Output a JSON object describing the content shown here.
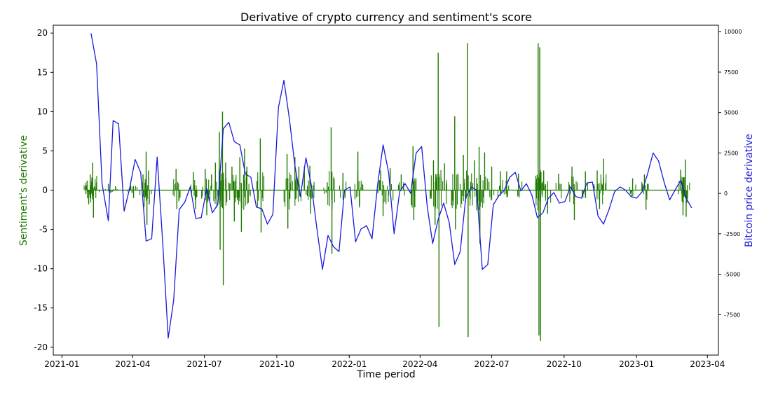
{
  "chart_data": {
    "type": "line",
    "title": "Derivative of crypto currency and sentiment's score",
    "xlabel": "Time period",
    "ylabel_left": "Sentiment's derivative",
    "ylabel_right": "Bitcoin price derivative",
    "ylim_left": [
      -21,
      21
    ],
    "ylim_right": [
      -10000,
      10400
    ],
    "y_ticks_left": [
      -20,
      -15,
      -10,
      -5,
      0,
      5,
      10,
      15,
      20
    ],
    "y_ticks_right": [
      -7500,
      -5000,
      -2500,
      0,
      2500,
      5000,
      7500,
      10000
    ],
    "x_ticks": [
      "2021-01",
      "2021-04",
      "2021-07",
      "2021-10",
      "2022-01",
      "2022-04",
      "2022-07",
      "2022-10",
      "2023-01",
      "2023-04"
    ],
    "xlim": [
      "2020-12-21",
      "2023-04-15"
    ],
    "grid": false,
    "colors": {
      "sentiment": "#1f7a00",
      "bitcoin": "#1a1adb"
    },
    "series": [
      {
        "name": "Sentiment's derivative",
        "axis": "left",
        "style": "vertical spikes around 0",
        "points": [
          [
            "2021-02-02",
            1.2
          ],
          [
            "2021-02-04",
            -1.8
          ],
          [
            "2021-02-06",
            2.0
          ],
          [
            "2021-02-09",
            3.5
          ],
          [
            "2021-02-10",
            -3.5
          ],
          [
            "2021-02-14",
            1.0
          ],
          [
            "2021-03-01",
            0.8
          ],
          [
            "2021-03-10",
            0.5
          ],
          [
            "2021-03-29",
            0.9
          ],
          [
            "2021-04-02",
            -1.0
          ],
          [
            "2021-04-14",
            2.0
          ],
          [
            "2021-04-18",
            4.9
          ],
          [
            "2021-04-19",
            -4.4
          ],
          [
            "2021-04-21",
            2.5
          ],
          [
            "2021-05-26",
            2.7
          ],
          [
            "2021-05-27",
            -2.4
          ],
          [
            "2021-06-17",
            2.3
          ],
          [
            "2021-06-20",
            -2.4
          ],
          [
            "2021-07-02",
            2.7
          ],
          [
            "2021-07-04",
            -3.2
          ],
          [
            "2021-07-10",
            2.0
          ],
          [
            "2021-07-15",
            3.5
          ],
          [
            "2021-07-20",
            7.4
          ],
          [
            "2021-07-21",
            -7.6
          ],
          [
            "2021-07-24",
            10.0
          ],
          [
            "2021-07-25",
            -12.1
          ],
          [
            "2021-07-28",
            3.5
          ],
          [
            "2021-08-05",
            3.0
          ],
          [
            "2021-08-08",
            -4.0
          ],
          [
            "2021-08-15",
            4.2
          ],
          [
            "2021-08-17",
            -5.3
          ],
          [
            "2021-08-21",
            5.3
          ],
          [
            "2021-08-24",
            3.0
          ],
          [
            "2021-09-10",
            6.6
          ],
          [
            "2021-09-11",
            -5.4
          ],
          [
            "2021-10-14",
            4.6
          ],
          [
            "2021-10-15",
            -4.9
          ],
          [
            "2021-10-24",
            4.2
          ],
          [
            "2021-10-29",
            3.0
          ],
          [
            "2021-11-05",
            3.0
          ],
          [
            "2021-11-12",
            3.1
          ],
          [
            "2021-11-13",
            -3.0
          ],
          [
            "2021-12-04",
            1.0
          ],
          [
            "2021-12-09",
            8.0
          ],
          [
            "2021-12-10",
            -8.1
          ],
          [
            "2021-12-24",
            2.2
          ],
          [
            "2022-01-12",
            4.9
          ],
          [
            "2022-01-14",
            -2.2
          ],
          [
            "2022-02-10",
            2.5
          ],
          [
            "2022-02-13",
            -3.3
          ],
          [
            "2022-02-22",
            2.8
          ],
          [
            "2022-03-08",
            2.0
          ],
          [
            "2022-03-23",
            5.6
          ],
          [
            "2022-03-24",
            -3.8
          ],
          [
            "2022-04-18",
            3.8
          ],
          [
            "2022-04-20",
            -4.4
          ],
          [
            "2022-04-24",
            17.5
          ],
          [
            "2022-04-25",
            -17.4
          ],
          [
            "2022-05-02",
            3.4
          ],
          [
            "2022-05-15",
            9.4
          ],
          [
            "2022-05-16",
            -5.0
          ],
          [
            "2022-05-26",
            4.5
          ],
          [
            "2022-05-31",
            18.7
          ],
          [
            "2022-06-01",
            -18.7
          ],
          [
            "2022-06-09",
            3.8
          ],
          [
            "2022-06-15",
            5.5
          ],
          [
            "2022-06-16",
            -6.8
          ],
          [
            "2022-06-22",
            4.8
          ],
          [
            "2022-07-01",
            3.0
          ],
          [
            "2022-07-12",
            2.4
          ],
          [
            "2022-07-20",
            2.4
          ],
          [
            "2022-08-04",
            2.1
          ],
          [
            "2022-08-29",
            18.7
          ],
          [
            "2022-08-30",
            -18.5
          ],
          [
            "2022-08-31",
            18.2
          ],
          [
            "2022-09-01",
            -19.2
          ],
          [
            "2022-09-05",
            2.5
          ],
          [
            "2022-09-10",
            -3.0
          ],
          [
            "2022-09-24",
            2.1
          ],
          [
            "2022-10-11",
            3.0
          ],
          [
            "2022-10-14",
            -3.8
          ],
          [
            "2022-10-28",
            2.4
          ],
          [
            "2022-11-12",
            2.5
          ],
          [
            "2022-11-15",
            -2.4
          ],
          [
            "2022-11-20",
            4.0
          ],
          [
            "2022-12-27",
            1.5
          ],
          [
            "2023-01-11",
            2.0
          ],
          [
            "2023-01-13",
            -2.5
          ],
          [
            "2023-02-26",
            2.6
          ],
          [
            "2023-03-01",
            -3.2
          ],
          [
            "2023-03-04",
            3.9
          ],
          [
            "2023-03-05",
            -3.4
          ]
        ]
      },
      {
        "name": "Bitcoin price derivative",
        "axis": "right",
        "style": "line",
        "points": [
          [
            "2021-02-07",
            9900
          ],
          [
            "2021-02-14",
            8000
          ],
          [
            "2021-02-21",
            600
          ],
          [
            "2021-03-01",
            -1700
          ],
          [
            "2021-03-07",
            4500
          ],
          [
            "2021-03-14",
            4300
          ],
          [
            "2021-03-21",
            -1100
          ],
          [
            "2021-03-28",
            300
          ],
          [
            "2021-04-04",
            2100
          ],
          [
            "2021-04-11",
            1300
          ],
          [
            "2021-04-18",
            -2950
          ],
          [
            "2021-04-25",
            -2800
          ],
          [
            "2021-05-02",
            2250
          ],
          [
            "2021-05-09",
            -3000
          ],
          [
            "2021-05-16",
            -8950
          ],
          [
            "2021-05-23",
            -6600
          ],
          [
            "2021-05-30",
            -1000
          ],
          [
            "2021-06-06",
            -550
          ],
          [
            "2021-06-13",
            400
          ],
          [
            "2021-06-20",
            -1550
          ],
          [
            "2021-06-27",
            -1500
          ],
          [
            "2021-07-04",
            300
          ],
          [
            "2021-07-11",
            -1200
          ],
          [
            "2021-07-18",
            -700
          ],
          [
            "2021-07-25",
            4000
          ],
          [
            "2021-08-01",
            4400
          ],
          [
            "2021-08-08",
            3200
          ],
          [
            "2021-08-15",
            3000
          ],
          [
            "2021-08-22",
            1200
          ],
          [
            "2021-08-29",
            1000
          ],
          [
            "2021-09-05",
            -850
          ],
          [
            "2021-09-12",
            -950
          ],
          [
            "2021-09-19",
            -1900
          ],
          [
            "2021-09-26",
            -1300
          ],
          [
            "2021-10-03",
            5300
          ],
          [
            "2021-10-10",
            7000
          ],
          [
            "2021-10-17",
            4600
          ],
          [
            "2021-10-24",
            1700
          ],
          [
            "2021-10-31",
            -200
          ],
          [
            "2021-11-07",
            2200
          ],
          [
            "2021-11-14",
            450
          ],
          [
            "2021-11-21",
            -2200
          ],
          [
            "2021-11-28",
            -4700
          ],
          [
            "2021-12-05",
            -2600
          ],
          [
            "2021-12-12",
            -3300
          ],
          [
            "2021-12-19",
            -3600
          ],
          [
            "2021-12-26",
            200
          ],
          [
            "2022-01-02",
            400
          ],
          [
            "2022-01-09",
            -3000
          ],
          [
            "2022-01-16",
            -2200
          ],
          [
            "2022-01-23",
            -2000
          ],
          [
            "2022-01-30",
            -2800
          ],
          [
            "2022-02-06",
            500
          ],
          [
            "2022-02-13",
            3000
          ],
          [
            "2022-02-20",
            1300
          ],
          [
            "2022-02-27",
            -2500
          ],
          [
            "2022-03-06",
            100
          ],
          [
            "2022-03-13",
            600
          ],
          [
            "2022-03-20",
            0
          ],
          [
            "2022-03-27",
            2500
          ],
          [
            "2022-04-03",
            2900
          ],
          [
            "2022-04-10",
            -800
          ],
          [
            "2022-04-17",
            -3100
          ],
          [
            "2022-04-24",
            -1600
          ],
          [
            "2022-05-01",
            -600
          ],
          [
            "2022-05-08",
            -1800
          ],
          [
            "2022-05-15",
            -4400
          ],
          [
            "2022-05-22",
            -3600
          ],
          [
            "2022-05-29",
            -250
          ],
          [
            "2022-06-05",
            400
          ],
          [
            "2022-06-12",
            200
          ],
          [
            "2022-06-19",
            -4700
          ],
          [
            "2022-06-26",
            -4400
          ],
          [
            "2022-07-03",
            -700
          ],
          [
            "2022-07-10",
            -150
          ],
          [
            "2022-07-17",
            200
          ],
          [
            "2022-07-24",
            1000
          ],
          [
            "2022-07-31",
            1300
          ],
          [
            "2022-08-07",
            150
          ],
          [
            "2022-08-14",
            600
          ],
          [
            "2022-08-21",
            -100
          ],
          [
            "2022-08-28",
            -1500
          ],
          [
            "2022-09-04",
            -1200
          ],
          [
            "2022-09-11",
            -300
          ],
          [
            "2022-09-18",
            50
          ],
          [
            "2022-09-25",
            -600
          ],
          [
            "2022-10-02",
            -500
          ],
          [
            "2022-10-09",
            400
          ],
          [
            "2022-10-16",
            -200
          ],
          [
            "2022-10-23",
            -300
          ],
          [
            "2022-10-30",
            650
          ],
          [
            "2022-11-06",
            700
          ],
          [
            "2022-11-13",
            -1400
          ],
          [
            "2022-11-20",
            -1900
          ],
          [
            "2022-11-27",
            -1000
          ],
          [
            "2022-12-04",
            100
          ],
          [
            "2022-12-11",
            400
          ],
          [
            "2022-12-18",
            200
          ],
          [
            "2022-12-25",
            -200
          ],
          [
            "2023-01-01",
            -300
          ],
          [
            "2023-01-08",
            100
          ],
          [
            "2023-01-15",
            1200
          ],
          [
            "2023-01-22",
            2500
          ],
          [
            "2023-01-29",
            2000
          ],
          [
            "2023-02-05",
            700
          ],
          [
            "2023-02-12",
            -400
          ],
          [
            "2023-02-19",
            200
          ],
          [
            "2023-02-26",
            800
          ],
          [
            "2023-03-05",
            -300
          ],
          [
            "2023-03-12",
            -900
          ]
        ]
      }
    ]
  }
}
